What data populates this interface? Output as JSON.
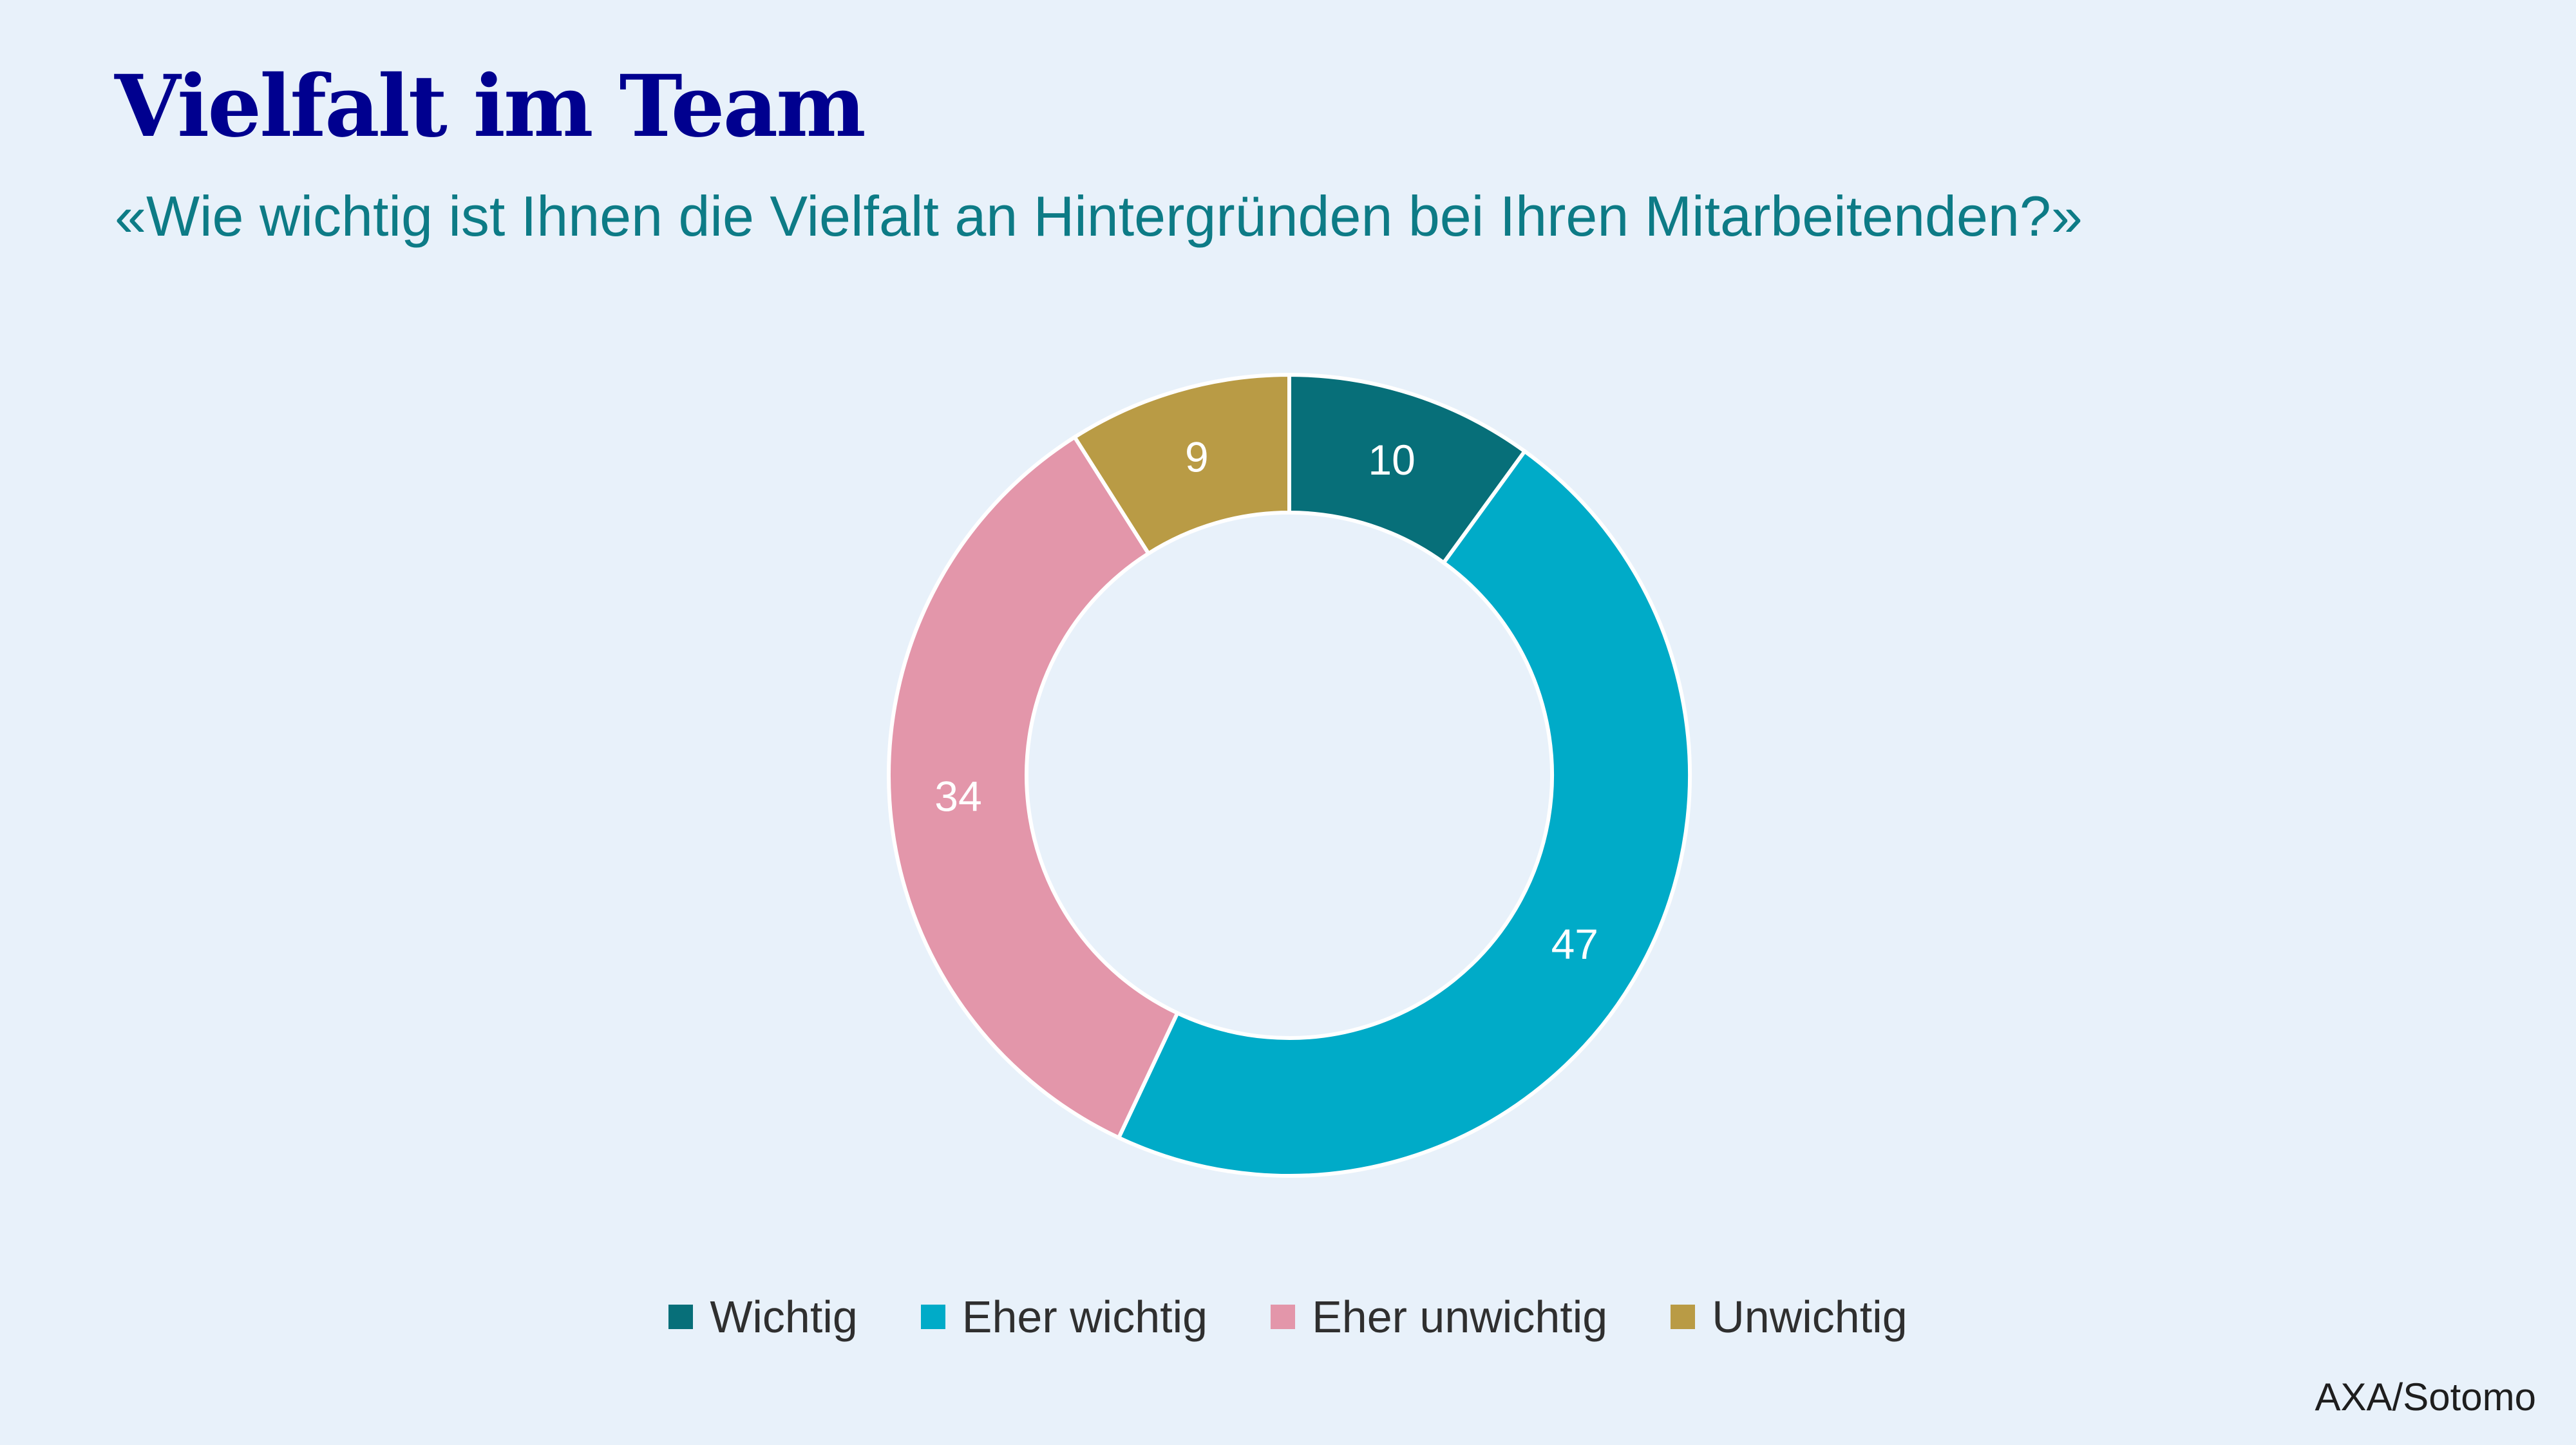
{
  "header": {
    "title": "Vielfalt im Team",
    "subtitle": "«Wie wichtig ist Ihnen die Vielfalt an Hintergründen bei Ihren Mitarbeitenden?»"
  },
  "source": "AXA/Sotomo",
  "colors": {
    "background": "#e8f1fa",
    "title": "#00008f",
    "subtitle": "#0d7b86"
  },
  "chart_data": {
    "type": "pie",
    "subtype": "donut",
    "title": "Vielfalt im Team",
    "subtitle": "«Wie wichtig ist Ihnen die Vielfalt an Hintergründen bei Ihren Mitarbeitenden?»",
    "categories": [
      "Wichtig",
      "Eher wichtig",
      "Eher unwichtig",
      "Unwichtig"
    ],
    "values": [
      10,
      47,
      34,
      9
    ],
    "labels": [
      "10",
      "47",
      "34",
      "9"
    ],
    "colors": [
      "#076f79",
      "#00abc8",
      "#e396aa",
      "#b99b45"
    ],
    "legend_position": "bottom",
    "start_angle": "top, clockwise"
  }
}
